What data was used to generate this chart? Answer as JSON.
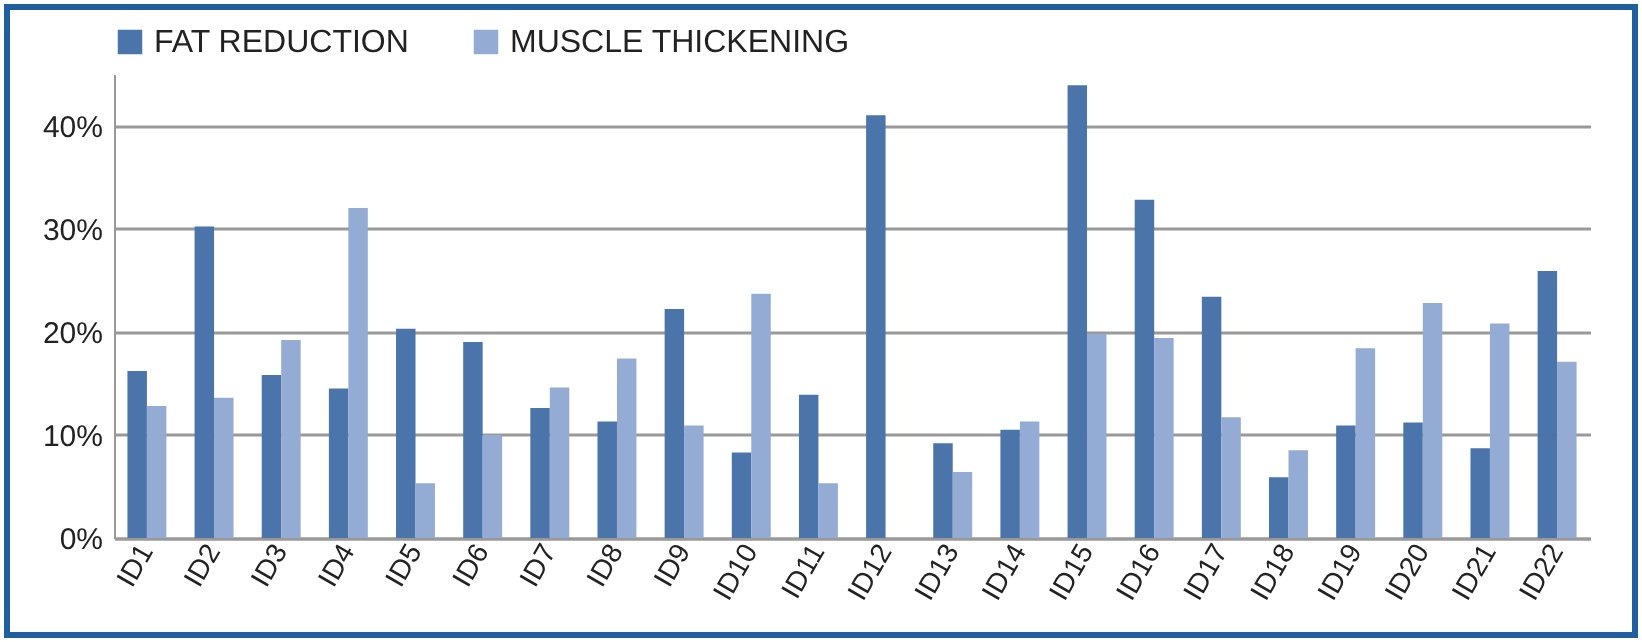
{
  "chart_data": {
    "type": "bar",
    "categories": [
      "ID1",
      "ID2",
      "ID3",
      "ID4",
      "ID5",
      "ID6",
      "ID7",
      "ID8",
      "ID9",
      "ID10",
      "ID11",
      "ID12",
      "ID13",
      "ID14",
      "ID15",
      "ID16",
      "ID17",
      "ID18",
      "ID19",
      "ID20",
      "ID21",
      "ID22"
    ],
    "series": [
      {
        "name": "FAT REDUCTION",
        "color": "#4a74aa",
        "values": [
          16.2,
          30.2,
          15.8,
          14.5,
          20.3,
          19.0,
          12.6,
          11.3,
          22.2,
          8.3,
          13.9,
          41.0,
          9.2,
          10.5,
          43.9,
          32.8,
          23.4,
          5.9,
          10.9,
          11.2,
          8.7,
          25.9
        ]
      },
      {
        "name": "MUSCLE THICKENING",
        "color": "#94abd4",
        "values": [
          12.8,
          13.6,
          19.2,
          32.0,
          5.3,
          10.0,
          14.6,
          17.4,
          10.9,
          23.7,
          5.3,
          null,
          6.4,
          11.3,
          19.8,
          19.4,
          11.7,
          8.5,
          18.4,
          22.8,
          20.8,
          17.1
        ]
      }
    ],
    "ylim": [
      0,
      45
    ],
    "yticks": [
      {
        "value": 0,
        "label": "0%"
      },
      {
        "value": 10,
        "label": "10%"
      },
      {
        "value": 20,
        "label": "20%"
      },
      {
        "value": 30,
        "label": "30%"
      },
      {
        "value": 40,
        "label": "40%"
      }
    ],
    "grid": "y",
    "legend": "top"
  }
}
